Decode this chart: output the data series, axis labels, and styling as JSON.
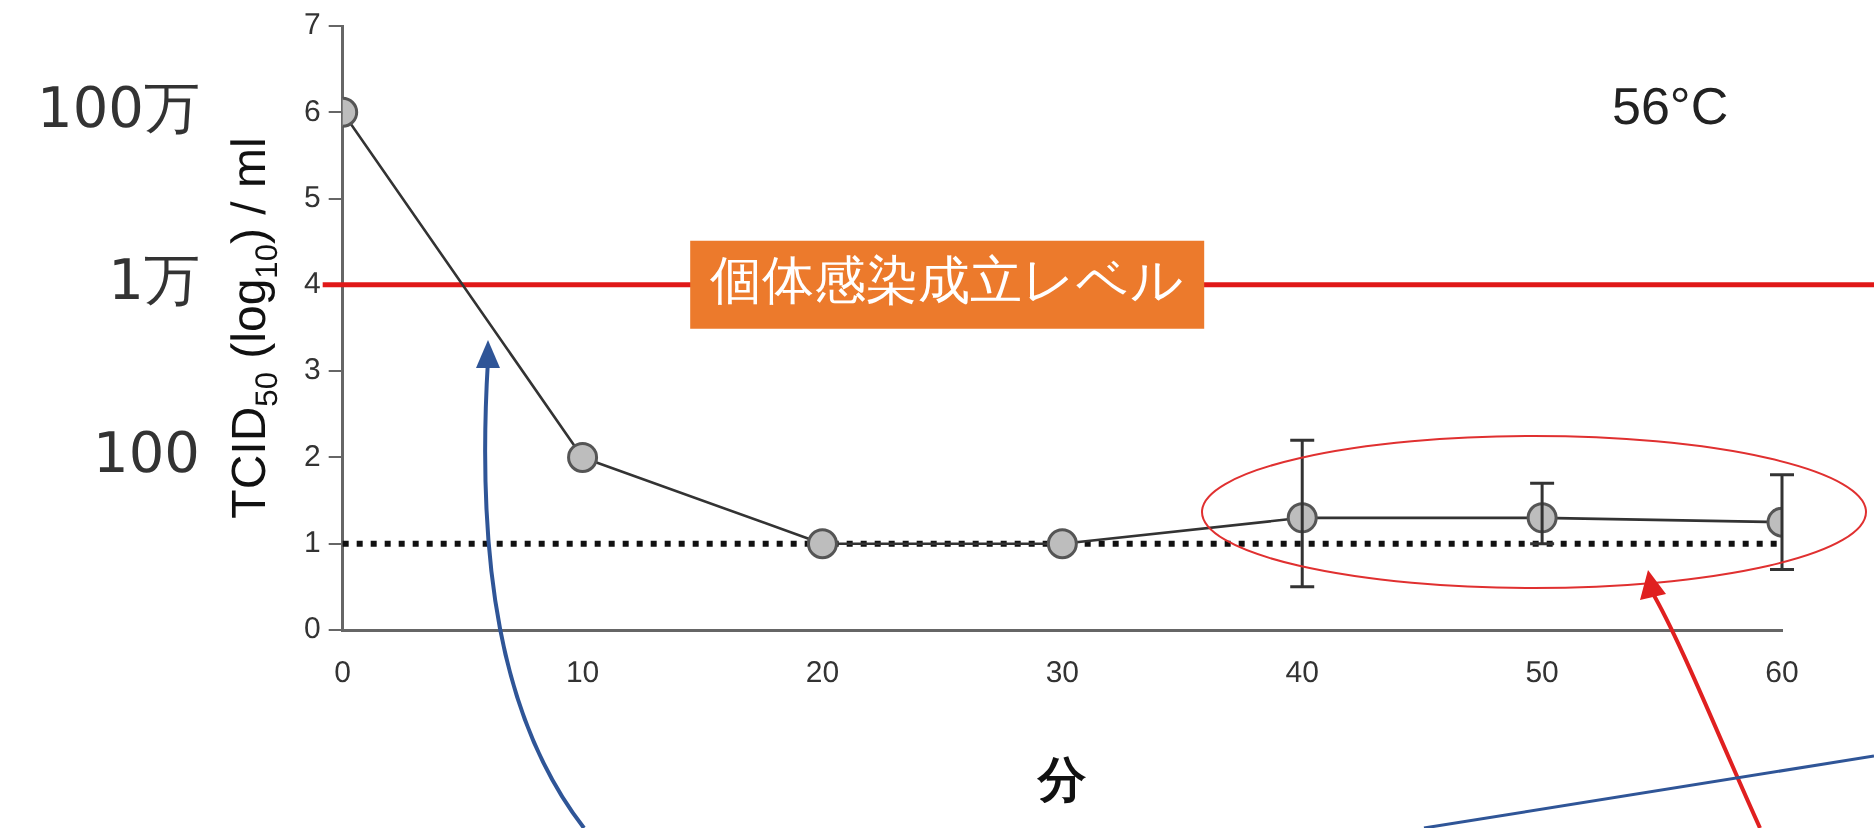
{
  "chart_data": {
    "type": "line",
    "xlabel": "分",
    "ylabel": "TCID$_{50}$ (log$_{10}$) / ml",
    "x": [
      0,
      10,
      20,
      30,
      40,
      50,
      60
    ],
    "series": [
      {
        "color": "#333333",
        "values": [
          6,
          2,
          1,
          1,
          1.3,
          1.3,
          1.25
        ],
        "errors": [
          null,
          null,
          null,
          null,
          [
            0.5,
            2.2
          ],
          [
            1.0,
            1.7
          ],
          [
            0.7,
            1.8
          ]
        ]
      }
    ],
    "marker": "circle",
    "line_style": "solid",
    "grid": false,
    "legend": false,
    "xlim": [
      0,
      60
    ],
    "xticks": [
      0,
      10,
      20,
      30,
      40,
      50,
      60
    ],
    "ylim": [
      0,
      7
    ],
    "yticks": [
      0,
      1,
      2,
      3,
      4,
      5,
      6,
      7
    ],
    "ref_lines": [
      {
        "axis": "y",
        "value": 4,
        "label": "個体感染成立レベル",
        "color": "#e01818",
        "line_style": "solid"
      },
      {
        "axis": "y",
        "value": 1,
        "color": "#111111",
        "line_style": "dotted"
      }
    ],
    "annotations": [
      "56°C",
      "100万",
      "1万",
      "100"
    ]
  }
}
